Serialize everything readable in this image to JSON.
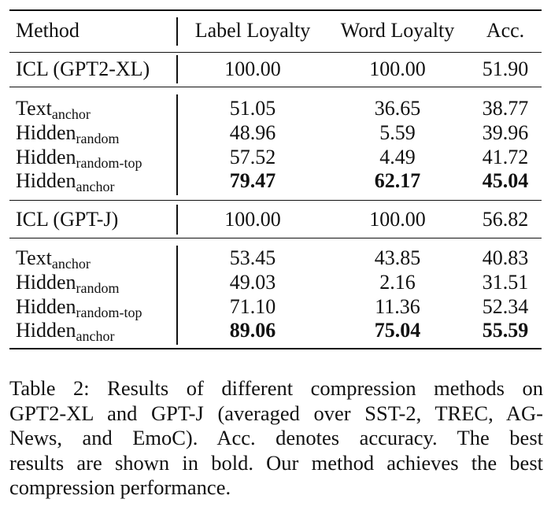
{
  "table": {
    "headers": {
      "method": "Method",
      "label_loyalty": "Label Loyalty",
      "word_loyalty": "Word Loyalty",
      "acc": "Acc."
    },
    "groups": [
      {
        "baseline": {
          "method": "ICL (GPT2-XL)",
          "label_loyalty": "100.00",
          "word_loyalty": "100.00",
          "acc": "51.90"
        },
        "rows": [
          {
            "base": "Text",
            "sub": "anchor",
            "label_loyalty": "51.05",
            "word_loyalty": "36.65",
            "acc": "38.77",
            "bold": false
          },
          {
            "base": "Hidden",
            "sub": "random",
            "label_loyalty": "48.96",
            "word_loyalty": "5.59",
            "acc": "39.96",
            "bold": false
          },
          {
            "base": "Hidden",
            "sub": "random-top",
            "label_loyalty": "57.52",
            "word_loyalty": "4.49",
            "acc": "41.72",
            "bold": false
          },
          {
            "base": "Hidden",
            "sub": "anchor",
            "label_loyalty": "79.47",
            "word_loyalty": "62.17",
            "acc": "45.04",
            "bold": true
          }
        ]
      },
      {
        "baseline": {
          "method": "ICL (GPT-J)",
          "label_loyalty": "100.00",
          "word_loyalty": "100.00",
          "acc": "56.82"
        },
        "rows": [
          {
            "base": "Text",
            "sub": "anchor",
            "label_loyalty": "53.45",
            "word_loyalty": "43.85",
            "acc": "40.83",
            "bold": false
          },
          {
            "base": "Hidden",
            "sub": "random",
            "label_loyalty": "49.03",
            "word_loyalty": "2.16",
            "acc": "31.51",
            "bold": false
          },
          {
            "base": "Hidden",
            "sub": "random-top",
            "label_loyalty": "71.10",
            "word_loyalty": "11.36",
            "acc": "52.34",
            "bold": false
          },
          {
            "base": "Hidden",
            "sub": "anchor",
            "label_loyalty": "89.06",
            "word_loyalty": "75.04",
            "acc": "55.59",
            "bold": true
          }
        ]
      }
    ]
  },
  "caption": {
    "lines": [
      "Table 2: Results of different compression methods on",
      "GPT2-XL and GPT-J (averaged over SST-2, TREC, AG-",
      "News, and EmoC). Acc. denotes accuracy. The best",
      "results are shown in bold. Our method achieves the best",
      "compression performance."
    ]
  }
}
